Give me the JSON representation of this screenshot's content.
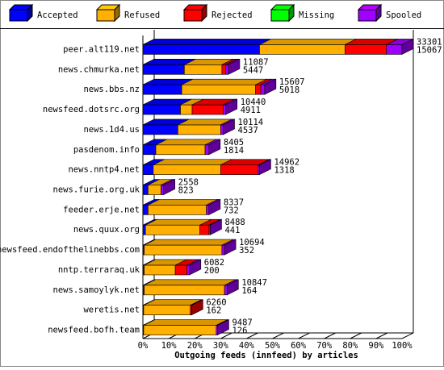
{
  "chart_data": {
    "type": "bar3d",
    "orientation": "horizontal",
    "stacked": true,
    "xlabel": "Outgoing feeds (innfeed) by articles",
    "categories": [
      "peer.alt119.net",
      "news.chmurka.net",
      "news.bbs.nz",
      "newsfeed.dotsrc.org",
      "news.1d4.us",
      "pasdenom.info",
      "news.nntp4.net",
      "news.furie.org.uk",
      "feeder.erje.net",
      "news.quux.org",
      "newsfeed.endofthelinebbs.com",
      "nntp.terraraq.uk",
      "news.samoylyk.net",
      "weretis.net",
      "newsfeed.bofh.team"
    ],
    "series": [
      {
        "name": "Accepted",
        "color": "#0000ff",
        "values": [
          45,
          16,
          15,
          14.5,
          13.5,
          5,
          4,
          2,
          2,
          1,
          0.5,
          0.5,
          0.5,
          0.3,
          0.3
        ]
      },
      {
        "name": "Refused",
        "color": "#ffb000",
        "values": [
          33,
          14.5,
          28.5,
          4.5,
          16.5,
          19,
          26,
          5,
          22.5,
          21,
          30,
          12,
          31,
          18,
          28
        ]
      },
      {
        "name": "Rejected",
        "color": "#ff0000",
        "values": [
          16,
          1.5,
          2,
          12,
          0,
          0,
          14.5,
          0,
          0,
          3.5,
          0,
          4.5,
          0,
          0.5,
          0
        ]
      },
      {
        "name": "Missing",
        "color": "#00ff00",
        "values": [
          0,
          0,
          0,
          0,
          0,
          0,
          0,
          0,
          0,
          0,
          0,
          0,
          0,
          0,
          0
        ]
      },
      {
        "name": "Spooled",
        "color": "#a000ff",
        "values": [
          6,
          1,
          1.5,
          1,
          1,
          1.5,
          0.5,
          1,
          1,
          0.5,
          1,
          1,
          1,
          0,
          0.5
        ]
      }
    ],
    "label_top": [
      "33301",
      "11087",
      "15607",
      "10440",
      "10114",
      "8405",
      "14962",
      "2558",
      "8337",
      "8488",
      "10694",
      "6082",
      "10847",
      "6260",
      "9487"
    ],
    "label_bottom": [
      "15067",
      "5447",
      "5018",
      "4911",
      "4537",
      "1814",
      "1318",
      "823",
      "732",
      "441",
      "352",
      "200",
      "164",
      "162",
      "126"
    ],
    "xlim": [
      0,
      100
    ],
    "xticks": [
      {
        "value": 0,
        "label": "0%"
      },
      {
        "value": 10,
        "label": "10%"
      },
      {
        "value": 20,
        "label": "20%"
      },
      {
        "value": 30,
        "label": "30%"
      },
      {
        "value": 40,
        "label": "40%"
      },
      {
        "value": 50,
        "label": "50%"
      },
      {
        "value": 60,
        "label": "60%"
      },
      {
        "value": 70,
        "label": "70%"
      },
      {
        "value": 80,
        "label": "80%"
      },
      {
        "value": 90,
        "label": "90%"
      },
      {
        "value": 100,
        "label": "100%"
      }
    ],
    "legend": "top"
  }
}
